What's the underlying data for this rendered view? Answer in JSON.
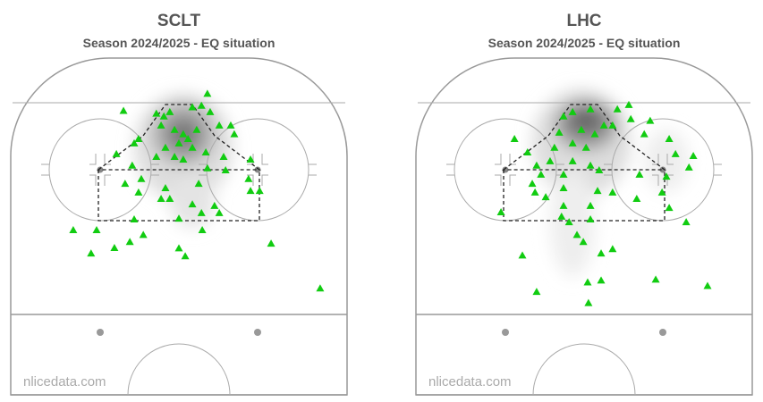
{
  "chart_data": [
    {
      "type": "scatter",
      "title": "SCLT",
      "subtitle": "Season 2024/2025  -  EQ situation",
      "watermark": "nlicedata.com",
      "color": "#11cc11",
      "xlim": [
        -42.5,
        42.5
      ],
      "ylim": [
        0,
        85
      ],
      "x": [
        7.2,
        -14.0,
        -5.7,
        -3.8,
        -2.3,
        3.4,
        5.7,
        7.9,
        -4.5,
        -1.1,
        1.1,
        2.3,
        4.5,
        0,
        3.4,
        -3.4,
        10.2,
        13.1,
        14.0,
        -10.2,
        -11.3,
        -5.7,
        -1.1,
        1.1,
        6.8,
        11.3,
        18.1,
        -15.8,
        -11.8,
        7.2,
        11.8,
        -9.5,
        -13.6,
        -10.2,
        -3.4,
        5.0,
        18.1,
        20.4,
        17.6,
        -4.5,
        -2.3,
        3.4,
        9.0,
        10.2,
        5.7,
        0,
        -11.3,
        -20.8,
        -26.7,
        -9.0,
        -12.4,
        -16.3,
        -22.2,
        0,
        1.6,
        5.9,
        23.3,
        35.7
      ],
      "y": [
        9.0,
        13.3,
        14.0,
        14.7,
        13.6,
        12.4,
        12.0,
        13.6,
        17.0,
        18.1,
        19.2,
        20.4,
        18.1,
        21.5,
        22.6,
        22.6,
        17.0,
        17.0,
        19.2,
        20.4,
        21.5,
        24.9,
        24.9,
        25.6,
        23.8,
        24.9,
        25.6,
        24.2,
        27.1,
        27.8,
        28.3,
        30.5,
        31.7,
        33.9,
        32.8,
        31.7,
        33.5,
        33.5,
        30.5,
        35.5,
        35.5,
        36.9,
        37.3,
        39.1,
        39.1,
        40.5,
        40.7,
        43.4,
        43.4,
        44.6,
        46.4,
        47.9,
        49.3,
        48.0,
        50.0,
        43.4,
        46.8,
        58.1
      ]
    },
    {
      "type": "scatter",
      "title": "LHC",
      "subtitle": "Season 2024/2025  -  EQ situation",
      "watermark": "nlicedata.com",
      "color": "#11cc11",
      "xlim": [
        -42.5,
        42.5
      ],
      "ylim": [
        0,
        85
      ],
      "x": [
        11.3,
        8.4,
        1.6,
        -2.9,
        -5.2,
        5.0,
        2.7,
        -0.7,
        -6.3,
        7.2,
        11.8,
        16.7,
        15.2,
        21.5,
        23.1,
        27.6,
        26.5,
        -2.9,
        0.5,
        -7.5,
        -14.3,
        -17.6,
        -12.0,
        -8.6,
        -2.9,
        1.6,
        -10.9,
        -5.2,
        3.8,
        14.0,
        20.8,
        -13.1,
        -5.2,
        -12.4,
        -9.7,
        3.4,
        7.2,
        13.3,
        19.7,
        -5.2,
        1.6,
        -5.7,
        1.6,
        21.5,
        25.8,
        -21.0,
        -3.8,
        -1.8,
        -0.2,
        7.2,
        4.3,
        -15.6,
        0.9,
        4.3,
        18.1,
        31.2,
        -12.0,
        1.1
      ],
      "y": [
        11.8,
        12.9,
        12.9,
        13.6,
        14.7,
        17.0,
        19.2,
        18.1,
        18.8,
        17.0,
        15.4,
        15.8,
        19.2,
        20.4,
        24.2,
        24.7,
        27.6,
        21.5,
        22.6,
        22.6,
        23.8,
        20.4,
        27.1,
        26.0,
        26.0,
        27.1,
        29.4,
        29.4,
        28.3,
        29.4,
        29.9,
        31.7,
        32.8,
        33.9,
        35.1,
        33.5,
        33.9,
        35.5,
        33.9,
        37.3,
        37.3,
        40.0,
        40.7,
        37.8,
        41.4,
        38.9,
        41.4,
        44.6,
        46.4,
        48.2,
        49.3,
        49.8,
        56.6,
        56.1,
        55.9,
        57.5,
        59.0,
        61.8
      ]
    }
  ]
}
